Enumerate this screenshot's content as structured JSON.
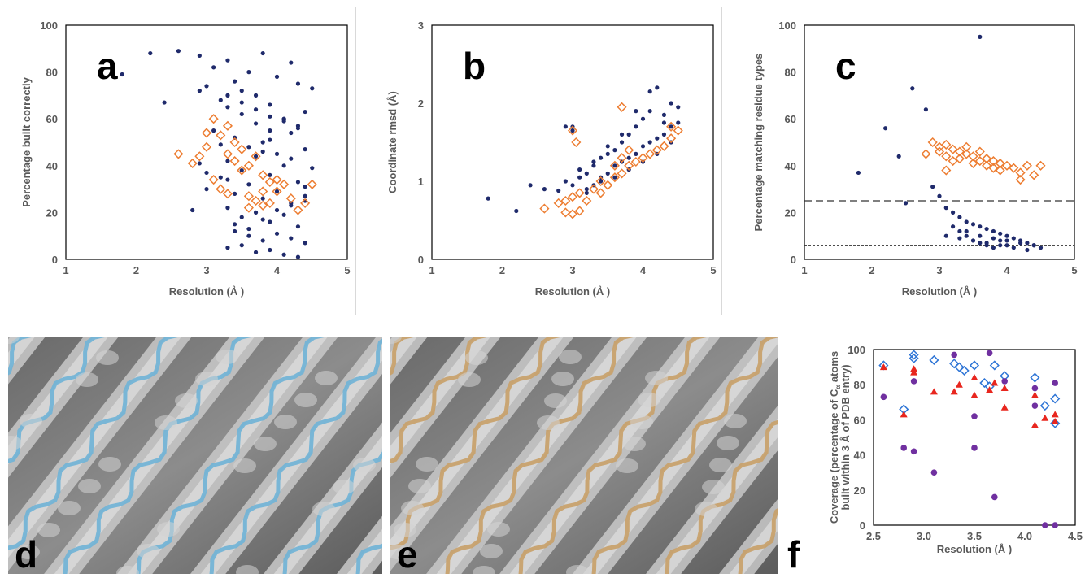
{
  "panels": {
    "a": "a",
    "b": "b",
    "c": "c",
    "d": "d",
    "e": "e",
    "f": "f"
  },
  "colors": {
    "navy": "#1f2a6b",
    "orange": "#ed7d31",
    "blue": "#2e75d6",
    "red": "#e8261e",
    "purple": "#7030a0",
    "ribbon_d": "#6fb3d6",
    "ribbon_e": "#c8a068",
    "density": "#b8b8b8"
  },
  "chart_data": [
    {
      "id": "a",
      "type": "scatter",
      "xlabel": "Resolution (Å )",
      "ylabel": "Percentage built correctly",
      "xlim": [
        1,
        5
      ],
      "ylim": [
        0,
        100
      ],
      "xticks": [
        "1",
        "2",
        "3",
        "4",
        "5"
      ],
      "yticks": [
        "0",
        "20",
        "40",
        "60",
        "80",
        "100"
      ],
      "series": [
        {
          "marker": "dot",
          "color": "navy",
          "x": [
            1.8,
            2.2,
            2.4,
            2.6,
            2.8,
            2.9,
            2.9,
            3.0,
            3.1,
            3.2,
            3.3,
            3.4,
            3.5,
            3.6,
            3.7,
            3.8,
            3.9,
            4.0,
            4.1,
            4.2,
            4.3,
            4.4,
            4.5,
            3.3,
            3.5,
            3.7,
            3.9,
            4.1,
            4.3,
            3.4,
            3.6,
            3.8,
            4.0,
            4.2,
            4.4,
            3.3,
            3.5,
            3.7,
            3.9,
            4.1,
            4.3,
            3.0,
            3.2,
            3.4,
            3.6,
            3.8,
            4.0,
            4.2,
            4.4,
            3.3,
            3.5,
            3.7,
            3.9,
            4.1,
            4.3,
            3.4,
            3.6,
            3.8,
            4.0,
            4.2,
            4.4,
            3.3,
            3.5,
            3.7,
            3.9,
            4.1,
            4.3,
            3.4,
            3.6,
            3.8,
            4.0,
            4.2,
            4.4,
            3.3,
            3.5,
            3.7,
            3.9,
            4.1,
            4.3,
            3.8,
            4.2,
            3.3,
            4.4,
            3.1,
            3.2,
            2.9,
            3.0,
            3.9,
            4.5
          ],
          "y": [
            79,
            88,
            67,
            89,
            21,
            72,
            87,
            74,
            82,
            68,
            85,
            76,
            72,
            80,
            70,
            88,
            66,
            78,
            60,
            84,
            75,
            63,
            73,
            65,
            62,
            58,
            55,
            60,
            57,
            52,
            48,
            50,
            45,
            54,
            47,
            42,
            38,
            44,
            36,
            40,
            33,
            30,
            35,
            28,
            32,
            26,
            29,
            24,
            27,
            22,
            18,
            20,
            16,
            19,
            14,
            12,
            10,
            8,
            11,
            9,
            7,
            5,
            6,
            3,
            4,
            2,
            1,
            15,
            13,
            17,
            21,
            23,
            25,
            70,
            67,
            64,
            61,
            59,
            56,
            46,
            43,
            34,
            31,
            55,
            49,
            41,
            37,
            51,
            39
          ]
        },
        {
          "marker": "diamond",
          "color": "orange",
          "x": [
            2.6,
            2.8,
            2.9,
            3.0,
            3.0,
            3.1,
            3.1,
            3.2,
            3.2,
            3.3,
            3.3,
            3.4,
            3.4,
            3.5,
            3.5,
            3.6,
            3.6,
            3.7,
            3.7,
            3.8,
            3.8,
            3.9,
            3.9,
            4.0,
            4.1,
            4.2,
            4.3,
            4.4,
            4.5,
            3.3,
            3.6,
            3.8,
            4.0
          ],
          "y": [
            45,
            41,
            44,
            54,
            48,
            60,
            34,
            53,
            30,
            57,
            45,
            50,
            42,
            47,
            38,
            40,
            27,
            44,
            25,
            36,
            23,
            33,
            24,
            29,
            32,
            26,
            21,
            24,
            32,
            28,
            22,
            29,
            34
          ]
        }
      ]
    },
    {
      "id": "b",
      "type": "scatter",
      "xlabel": "Resolution (Å )",
      "ylabel": "Coordinate rmsd (Å)",
      "xlim": [
        1,
        5
      ],
      "ylim": [
        0,
        3
      ],
      "xticks": [
        "1",
        "2",
        "3",
        "4",
        "5"
      ],
      "yticks": [
        "0",
        "1",
        "2",
        "3"
      ],
      "series": [
        {
          "marker": "dot",
          "color": "navy",
          "x": [
            1.8,
            2.2,
            2.4,
            2.6,
            2.8,
            2.9,
            3.0,
            3.0,
            3.1,
            3.2,
            3.2,
            3.3,
            3.3,
            3.4,
            3.4,
            3.5,
            3.5,
            3.6,
            3.6,
            3.7,
            3.7,
            3.8,
            3.8,
            3.9,
            3.9,
            4.0,
            4.0,
            4.1,
            4.1,
            4.2,
            4.2,
            4.3,
            4.3,
            4.4,
            4.4,
            4.5,
            4.5,
            3.1,
            3.3,
            3.5,
            3.7,
            3.9,
            4.1,
            4.3,
            3.2,
            3.4,
            3.6,
            3.8,
            4.0,
            4.2,
            4.4,
            2.9,
            3.0
          ],
          "y": [
            0.78,
            0.62,
            0.95,
            0.9,
            0.88,
            1.7,
            1.65,
            0.95,
            1.05,
            1.1,
            0.85,
            1.2,
            0.95,
            1.3,
            1.05,
            1.35,
            1.1,
            1.4,
            1.2,
            1.5,
            1.25,
            1.6,
            1.3,
            1.7,
            1.35,
            1.8,
            1.45,
            1.9,
            1.5,
            2.2,
            1.55,
            1.85,
            1.6,
            2.0,
            1.7,
            1.95,
            1.75,
            1.15,
            1.25,
            1.45,
            1.6,
            1.9,
            2.15,
            1.75,
            0.9,
            1.0,
            1.05,
            1.15,
            1.25,
            1.35,
            1.5,
            1.0,
            1.7
          ]
        },
        {
          "marker": "diamond",
          "color": "orange",
          "x": [
            2.6,
            2.8,
            2.9,
            2.9,
            3.0,
            3.0,
            3.1,
            3.1,
            3.2,
            3.3,
            3.4,
            3.4,
            3.5,
            3.6,
            3.6,
            3.7,
            3.7,
            3.8,
            3.8,
            3.9,
            4.0,
            4.1,
            4.2,
            4.3,
            4.4,
            4.5,
            3.0,
            3.05,
            3.7,
            4.4
          ],
          "y": [
            0.65,
            0.72,
            0.6,
            0.75,
            0.58,
            0.8,
            0.62,
            0.85,
            0.75,
            0.9,
            0.85,
            1.0,
            0.95,
            1.05,
            1.2,
            1.1,
            1.3,
            1.2,
            1.4,
            1.25,
            1.3,
            1.35,
            1.4,
            1.45,
            1.55,
            1.65,
            1.65,
            1.5,
            1.95,
            1.7
          ]
        }
      ]
    },
    {
      "id": "c",
      "type": "scatter",
      "xlabel": "Resolution (Å )",
      "ylabel": "Percentage matching residue types",
      "xlim": [
        1,
        5
      ],
      "ylim": [
        0,
        100
      ],
      "xticks": [
        "1",
        "2",
        "3",
        "4",
        "5"
      ],
      "yticks": [
        "0",
        "20",
        "40",
        "60",
        "80",
        "100"
      ],
      "hlines": [
        {
          "y": 25,
          "style": "dashed"
        },
        {
          "y": 6,
          "style": "dotted"
        }
      ],
      "series": [
        {
          "marker": "dot",
          "color": "navy",
          "x": [
            1.8,
            2.2,
            2.4,
            2.6,
            2.8,
            2.9,
            3.0,
            3.1,
            3.2,
            3.3,
            3.3,
            3.4,
            3.4,
            3.5,
            3.5,
            3.6,
            3.6,
            3.7,
            3.7,
            3.8,
            3.8,
            3.9,
            3.9,
            4.0,
            4.0,
            4.1,
            4.2,
            4.3,
            4.4,
            4.5,
            3.2,
            3.4,
            3.6,
            3.8,
            4.0,
            4.2,
            4.4,
            3.1,
            3.3,
            3.5,
            3.7,
            3.9,
            4.1,
            4.3,
            3.6,
            2.5
          ],
          "y": [
            37,
            56,
            44,
            73,
            64,
            31,
            27,
            22,
            20,
            18,
            12,
            16,
            10,
            15,
            8,
            14,
            7,
            13,
            6,
            12,
            5,
            11,
            8,
            10,
            6,
            9,
            8,
            7,
            6,
            5,
            14,
            12,
            10,
            9,
            8,
            7,
            6,
            10,
            9,
            8,
            7,
            6,
            5,
            4,
            95,
            24
          ]
        },
        {
          "marker": "diamond",
          "color": "orange",
          "x": [
            2.8,
            2.9,
            3.0,
            3.0,
            3.1,
            3.1,
            3.2,
            3.2,
            3.3,
            3.3,
            3.4,
            3.4,
            3.5,
            3.5,
            3.6,
            3.6,
            3.7,
            3.7,
            3.8,
            3.8,
            3.9,
            3.9,
            4.0,
            4.1,
            4.2,
            4.3,
            4.4,
            4.5,
            3.1,
            4.2
          ],
          "y": [
            45,
            50,
            48,
            46,
            49,
            44,
            47,
            42,
            46,
            43,
            45,
            48,
            44,
            41,
            42,
            46,
            40,
            43,
            39,
            42,
            41,
            38,
            40,
            39,
            37,
            40,
            36,
            40,
            38,
            34
          ]
        }
      ]
    },
    {
      "id": "f",
      "type": "scatter",
      "xlabel": "Resolution (Å )",
      "ylabel_lines": [
        "Coverage (percentage of C",
        "α",
        " atoms",
        "built within 3 Å of PDB entry)"
      ],
      "xlim": [
        2.5,
        4.5
      ],
      "ylim": [
        0,
        100
      ],
      "xticks": [
        "2.5",
        "3.0",
        "3.5",
        "4.0",
        "4.5"
      ],
      "yticks": [
        "0",
        "20",
        "40",
        "60",
        "80",
        "100"
      ],
      "series": [
        {
          "marker": "diamond",
          "color": "blue",
          "x": [
            2.6,
            2.8,
            2.9,
            3.1,
            3.3,
            3.35,
            3.5,
            3.6,
            3.7,
            3.8,
            4.1,
            4.2,
            4.3,
            2.9,
            3.4,
            3.65,
            4.3
          ],
          "y": [
            91,
            66,
            97,
            94,
            92,
            90,
            91,
            81,
            91,
            85,
            84,
            68,
            58,
            95,
            88,
            79,
            72
          ]
        },
        {
          "marker": "triangle",
          "color": "red",
          "x": [
            2.6,
            2.8,
            2.9,
            2.9,
            3.1,
            3.3,
            3.35,
            3.5,
            3.5,
            3.65,
            3.7,
            3.8,
            3.8,
            4.1,
            4.1,
            4.2,
            4.3,
            4.3
          ],
          "y": [
            90,
            63,
            87,
            89,
            76,
            76,
            80,
            84,
            74,
            77,
            81,
            78,
            67,
            74,
            57,
            61,
            63,
            59
          ]
        },
        {
          "marker": "circle",
          "color": "purple",
          "x": [
            2.6,
            2.8,
            2.9,
            2.9,
            3.1,
            3.3,
            3.5,
            3.5,
            3.65,
            3.7,
            3.8,
            4.1,
            4.1,
            4.3,
            4.2,
            4.3
          ],
          "y": [
            73,
            44,
            42,
            82,
            30,
            97,
            62,
            44,
            98,
            16,
            82,
            68,
            78,
            81,
            0,
            0
          ]
        }
      ]
    }
  ]
}
